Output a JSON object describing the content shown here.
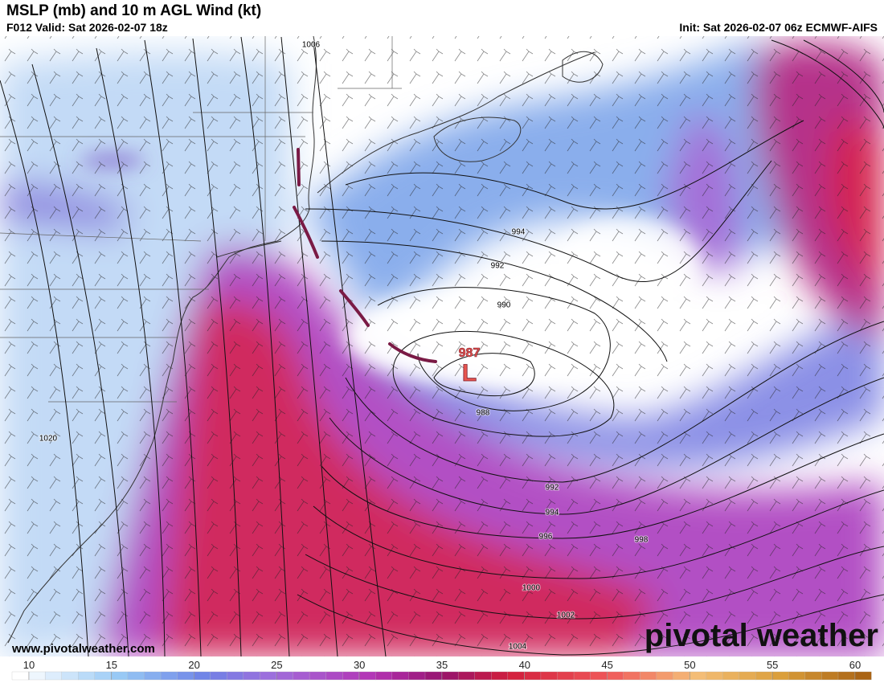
{
  "header": {
    "title": "MSLP (mb) and 10 m AGL Wind (kt)",
    "valid": "F012 Valid: Sat 2026-02-07 18z",
    "init": "Init: Sat 2026-02-07 06z ECMWF-AIFS"
  },
  "map": {
    "low": {
      "letter": "L",
      "pressure": 987
    },
    "isobar_labels": [
      1006,
      994,
      992,
      990,
      988,
      992,
      994,
      996,
      998,
      1000,
      1002,
      1004,
      1020
    ]
  },
  "watermark": {
    "url": "www.pivotalweather.com",
    "brand": "pivotal weather"
  },
  "colorbar": {
    "ticks": [
      10,
      15,
      20,
      25,
      30,
      35,
      40,
      45,
      50,
      55,
      60
    ]
  }
}
